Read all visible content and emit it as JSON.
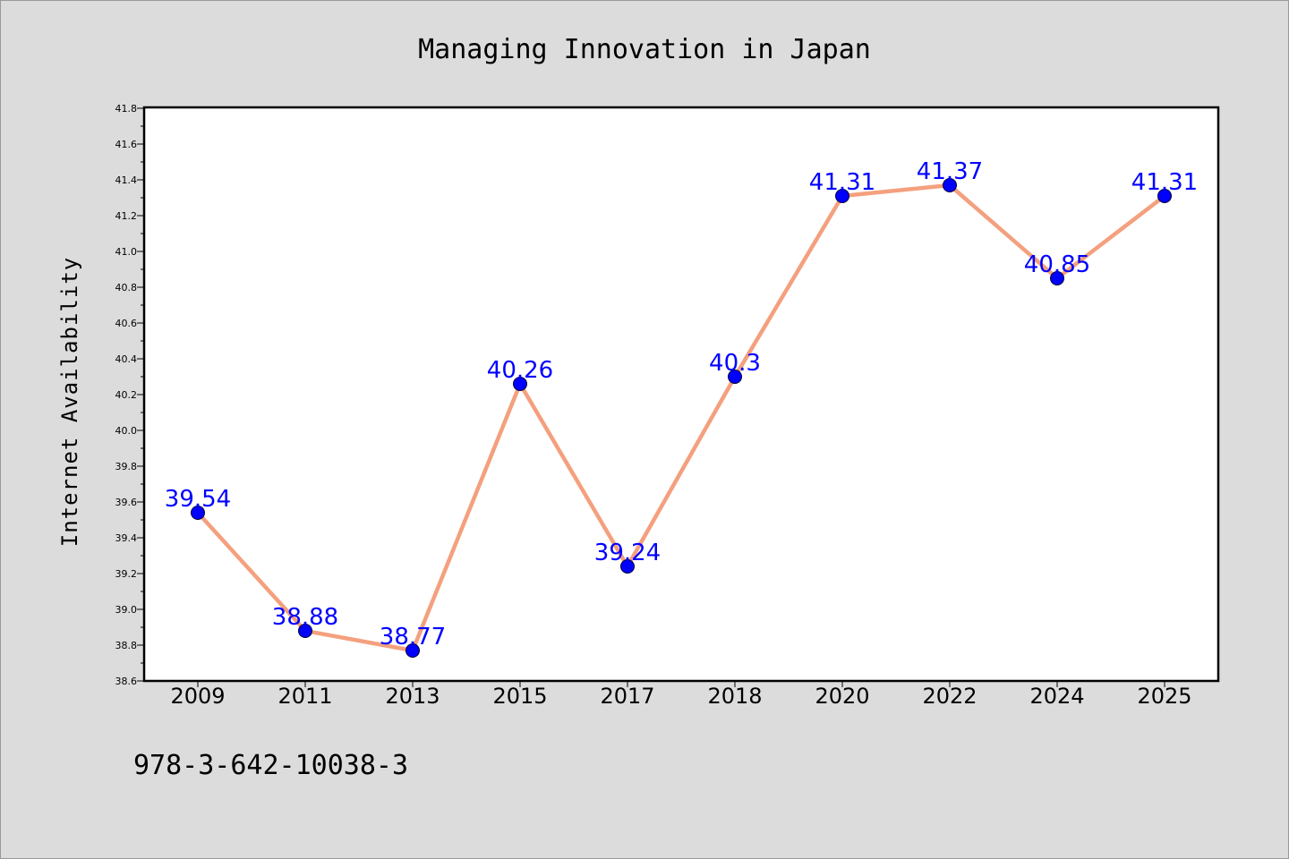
{
  "chart_data": {
    "type": "line",
    "title": "Managing Innovation in Japan",
    "xlabel": "",
    "ylabel": "Internet Availability",
    "categories": [
      "2009",
      "2011",
      "2013",
      "2015",
      "2017",
      "2018",
      "2020",
      "2022",
      "2024",
      "2025"
    ],
    "series": [
      {
        "values": [
          39.54,
          38.88,
          38.77,
          40.26,
          39.24,
          40.3,
          41.31,
          41.37,
          40.85,
          41.31
        ],
        "data_labels": [
          "39.54",
          "38.88",
          "38.77",
          "40.26",
          "39.24",
          "40.3",
          "41.31",
          "41.37",
          "40.85",
          "41.31"
        ]
      }
    ],
    "ylim": [
      38.6,
      41.8
    ],
    "yticks": [
      "38.6",
      "38.8",
      "39.0",
      "39.2",
      "39.4",
      "39.6",
      "39.8",
      "40.0",
      "40.2",
      "40.4",
      "40.6",
      "40.8",
      "41.0",
      "41.2",
      "41.4",
      "41.6",
      "41.8"
    ],
    "grid": false,
    "legend": "none",
    "colors": {
      "line": "#f4a07e",
      "marker": "#0000ff",
      "data_label": "#0000ff",
      "plot_background": "#ffffff",
      "figure_background": "#dcdcdc"
    }
  },
  "footer": {
    "isbn": "978-3-642-10038-3"
  }
}
